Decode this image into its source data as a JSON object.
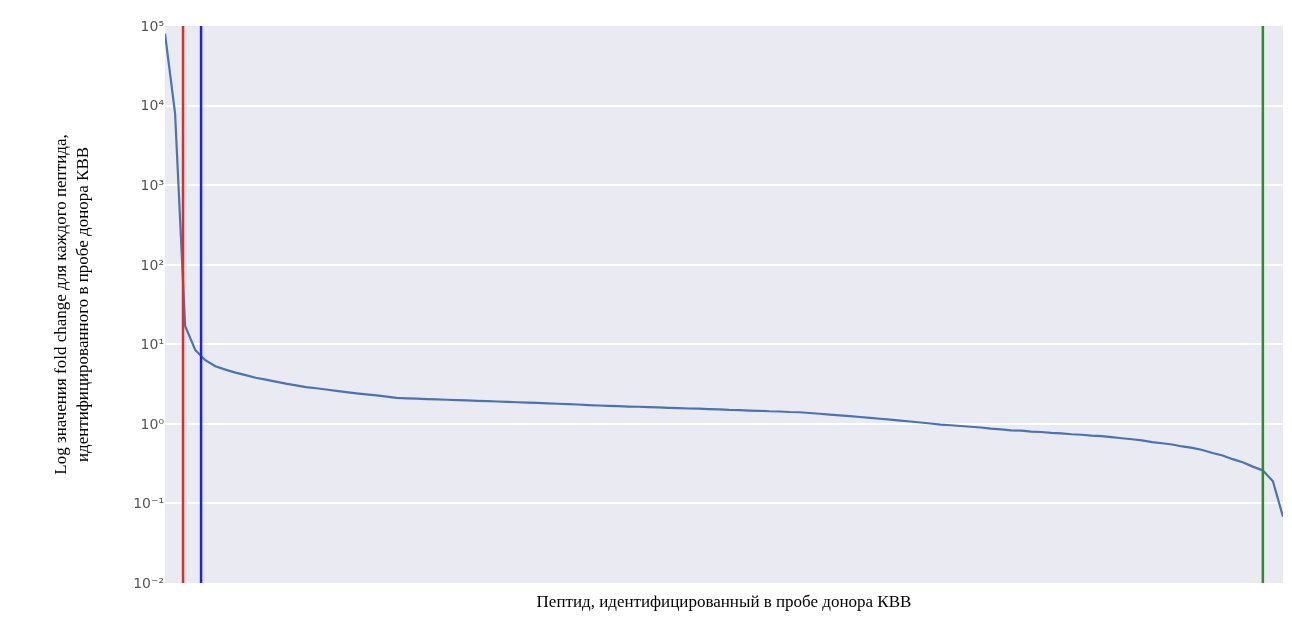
{
  "chart_data": {
    "type": "line",
    "xlabel": "Пептид, идентифицированный в пробе донора КВВ",
    "ylabel": "Log значения fold change для каждого пептида,\nидентифицированного в пробе донора КВВ",
    "categories": [
      null,
      null,
      null,
      null,
      null,
      null,
      null,
      null,
      null,
      null,
      null,
      null,
      null,
      null,
      null,
      null,
      null,
      null,
      null,
      null,
      null,
      null,
      null,
      null,
      null,
      null,
      null,
      null,
      null,
      null,
      null,
      null,
      null,
      null,
      null,
      null,
      null,
      null,
      null,
      null,
      null,
      null,
      null,
      null,
      null,
      null,
      null,
      null,
      null,
      null,
      null,
      null,
      null,
      null,
      null,
      null,
      null,
      null,
      null,
      null,
      null,
      null,
      null,
      null,
      null,
      null,
      null,
      null,
      null,
      null,
      null,
      null,
      null,
      null,
      null,
      null,
      null,
      null,
      null,
      null,
      null,
      null,
      null,
      null,
      null,
      null,
      null,
      null,
      null,
      null,
      null,
      null,
      null,
      null,
      null,
      null,
      null,
      null,
      null,
      null,
      null,
      null,
      null,
      null,
      null,
      null,
      null,
      null,
      null,
      null,
      null,
      null
    ],
    "series": [
      {
        "color": "#4c72b0",
        "values": [
          80000,
          8000,
          17,
          8.5,
          6.3,
          5.3,
          4.8,
          4.4,
          4.1,
          3.8,
          3.6,
          3.4,
          3.2,
          3.05,
          2.9,
          2.8,
          2.7,
          2.6,
          2.5,
          2.42,
          2.35,
          2.28,
          2.2,
          2.12,
          2.09,
          2.07,
          2.05,
          2.03,
          2.01,
          1.99,
          1.97,
          1.95,
          1.93,
          1.91,
          1.89,
          1.87,
          1.85,
          1.83,
          1.81,
          1.79,
          1.77,
          1.75,
          1.72,
          1.7,
          1.68,
          1.67,
          1.65,
          1.64,
          1.62,
          1.61,
          1.59,
          1.58,
          1.56,
          1.55,
          1.53,
          1.52,
          1.5,
          1.49,
          1.47,
          1.46,
          1.44,
          1.43,
          1.41,
          1.4,
          1.37,
          1.34,
          1.31,
          1.28,
          1.25,
          1.22,
          1.19,
          1.16,
          1.13,
          1.1,
          1.07,
          1.04,
          1.01,
          0.98,
          0.96,
          0.94,
          0.92,
          0.9,
          0.87,
          0.85,
          0.83,
          0.82,
          0.8,
          0.79,
          0.77,
          0.76,
          0.74,
          0.73,
          0.71,
          0.7,
          0.68,
          0.66,
          0.64,
          0.62,
          0.59,
          0.57,
          0.55,
          0.52,
          0.5,
          0.47,
          0.43,
          0.4,
          0.36,
          0.33,
          0.29,
          0.26,
          0.19,
          0.068
        ]
      }
    ],
    "log": "y",
    "ylim": [
      0.01,
      100000
    ],
    "yticks": [
      {
        "value": 0.01,
        "label": "10⁻²"
      },
      {
        "value": 0.1,
        "label": "10⁻¹"
      },
      {
        "value": 1,
        "label": "10⁰"
      },
      {
        "value": 10,
        "label": "10¹"
      },
      {
        "value": 100,
        "label": "10²"
      },
      {
        "value": 1000,
        "label": "10³"
      },
      {
        "value": 10000,
        "label": "10⁴"
      },
      {
        "value": 100000,
        "label": "10⁵"
      }
    ],
    "grid": "y",
    "tick_labels": "y",
    "marker": "none",
    "line_style": "solid"
  }
}
